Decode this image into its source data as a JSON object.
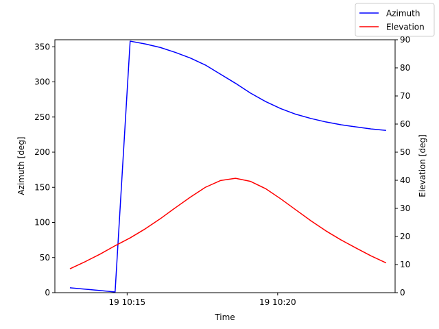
{
  "chart_data": {
    "type": "line",
    "xlabel": "Time",
    "ylabel_left": "Azimuth [deg]",
    "ylabel_right": "Elevation [deg]",
    "x_tick_labels": [
      "19 10:15",
      "19 10:20"
    ],
    "x_tick_minutes": [
      15.0,
      20.0
    ],
    "xlim_minutes": [
      12.6,
      23.9
    ],
    "ylim_left": [
      0,
      360
    ],
    "yticks_left": [
      0,
      50,
      100,
      150,
      200,
      250,
      300,
      350
    ],
    "ylim_right": [
      0,
      90
    ],
    "yticks_right": [
      0,
      10,
      20,
      30,
      40,
      50,
      60,
      70,
      80,
      90
    ],
    "grid": false,
    "legend_position": "top-right",
    "x_minutes": [
      13.1,
      13.6,
      14.1,
      14.6,
      15.1,
      15.6,
      16.1,
      16.6,
      17.1,
      17.6,
      18.1,
      18.6,
      19.1,
      19.6,
      20.1,
      20.6,
      21.1,
      21.6,
      22.1,
      22.6,
      23.1,
      23.6
    ],
    "series": [
      {
        "name": "Azimuth",
        "axis": "left",
        "color": "#0000ff",
        "values": [
          7,
          5,
          3,
          1,
          358,
          354,
          349,
          342,
          334,
          324,
          311,
          298,
          284,
          272,
          262,
          254,
          248,
          243,
          239,
          236,
          233,
          231
        ]
      },
      {
        "name": "Elevation",
        "axis": "right",
        "color": "#ff0000",
        "values": [
          8.5,
          11,
          13.7,
          16.7,
          19.5,
          22.7,
          26.3,
          30.2,
          34.0,
          37.5,
          39.9,
          40.7,
          39.6,
          37.0,
          33.4,
          29.5,
          25.6,
          22.0,
          18.8,
          15.9,
          13.1,
          10.6
        ]
      }
    ]
  }
}
